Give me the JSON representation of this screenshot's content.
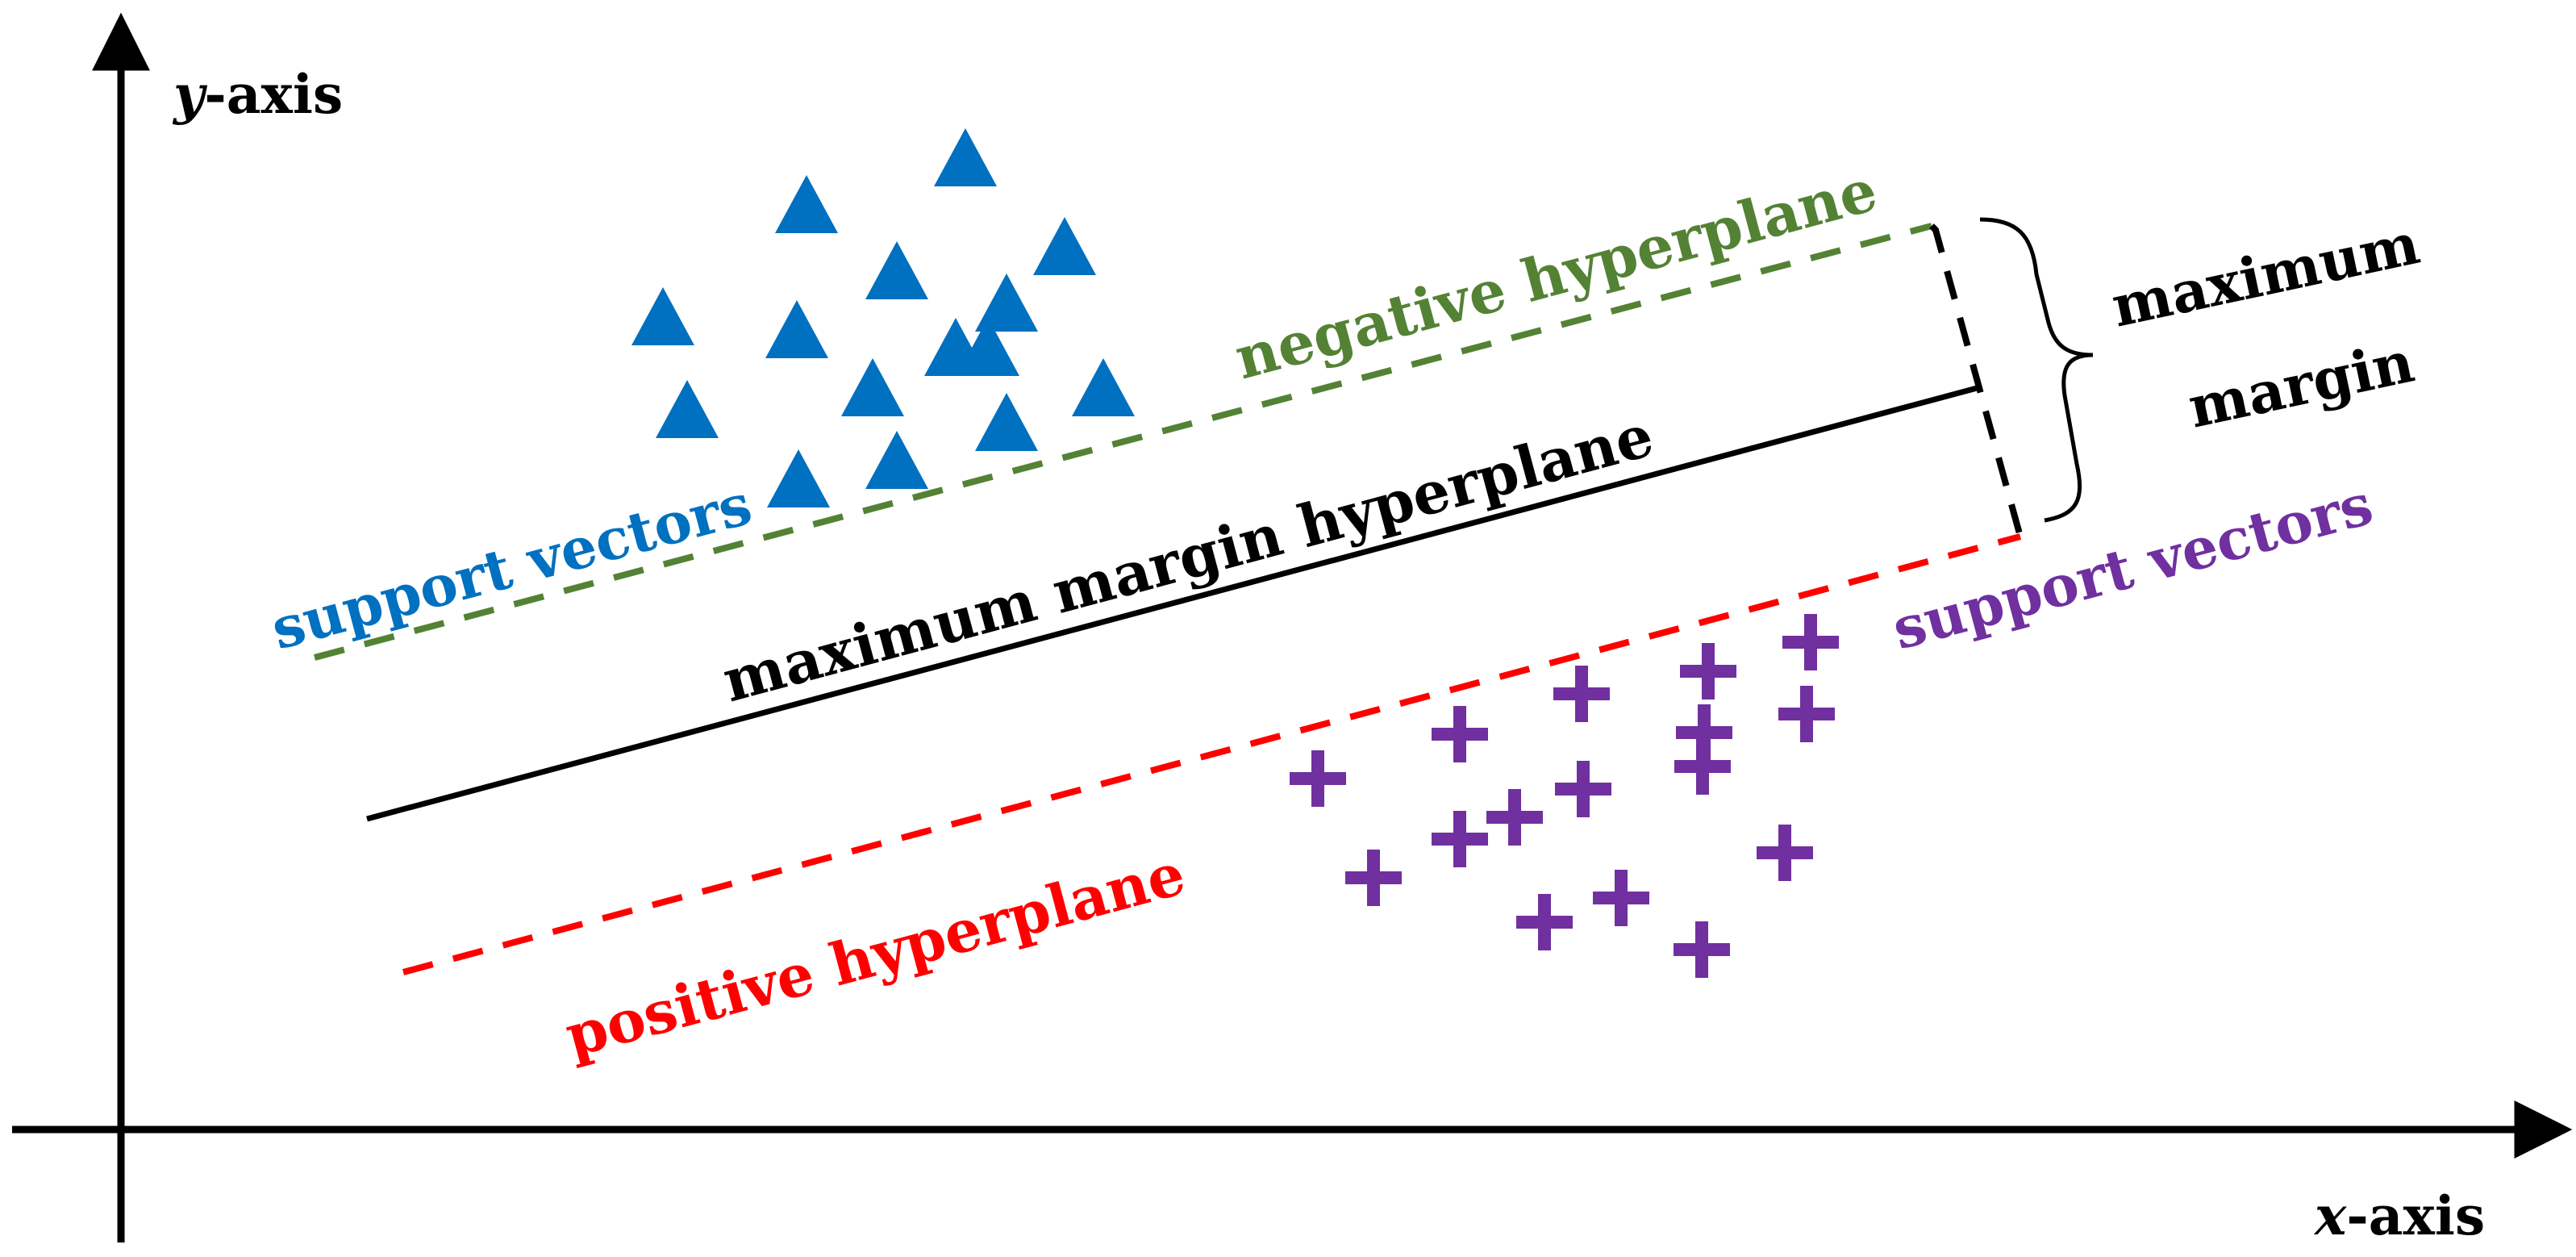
{
  "axes": {
    "x_label_var": "x",
    "x_label_rest": "-axis",
    "y_label_var": "y",
    "y_label_rest": "-axis"
  },
  "labels": {
    "negative_hyperplane": "negative hyperplane",
    "maximum_margin_hyperplane": "maximum margin hyperplane",
    "positive_hyperplane": "positive hyperplane",
    "support_vectors_negative": "support vectors",
    "support_vectors_positive": "support vectors",
    "maximum": "maximum",
    "margin": "margin"
  },
  "colors": {
    "negative_class": "#0070C0",
    "positive_class": "#7030A0",
    "negative_hyperplane": "#548235",
    "positive_hyperplane": "#FF0000",
    "maximum_margin_hyperplane": "#000000",
    "axes": "#000000"
  },
  "markers": {
    "negative_class_icon": "triangle-icon",
    "positive_class_icon": "plus-icon",
    "negative_class_count": 15,
    "positive_class_count": 16
  }
}
